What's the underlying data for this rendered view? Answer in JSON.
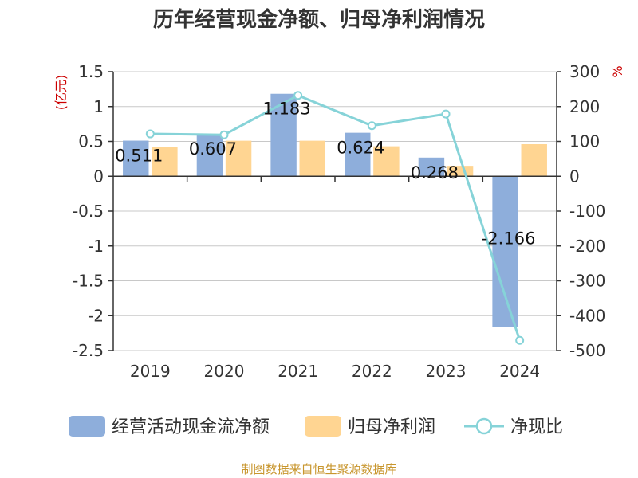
{
  "chart_data": {
    "type": "bar",
    "title": "历年经营现金净额、归母净利润情况",
    "categories": [
      "2019",
      "2020",
      "2021",
      "2022",
      "2023",
      "2024"
    ],
    "series": [
      {
        "name": "经营活动现金流净额",
        "type": "bar",
        "axis": "left",
        "color": "#8eaedb",
        "values": [
          0.511,
          0.607,
          1.183,
          0.624,
          0.268,
          -2.166
        ]
      },
      {
        "name": "归母净利润",
        "type": "bar",
        "axis": "left",
        "color": "#ffd592",
        "values": [
          0.42,
          0.51,
          0.51,
          0.43,
          0.15,
          0.46
        ]
      },
      {
        "name": "净现比",
        "type": "line",
        "axis": "right",
        "color": "#86d3d8",
        "values": [
          121.6,
          119.0,
          232.0,
          145.1,
          178.7,
          -470.9
        ]
      }
    ],
    "data_labels": [
      "0.511",
      "0.607",
      "1.183",
      "0.624",
      "0.268",
      "-2.166"
    ],
    "left_axis": {
      "unit": "(亿元)",
      "ylim": [
        -2.5,
        1.5
      ],
      "ticks": [
        1.5,
        1,
        0.5,
        0,
        -0.5,
        -1,
        -1.5,
        -2,
        -2.5
      ],
      "tick_labels": [
        "1.5",
        "1",
        "0.5",
        "0",
        "-0.5",
        "-1",
        "-1.5",
        "-2",
        "-2.5"
      ]
    },
    "right_axis": {
      "unit": "%",
      "ylim": [
        -500,
        300
      ],
      "ticks": [
        300,
        200,
        100,
        0,
        -100,
        -200,
        -300,
        -400,
        -500
      ],
      "tick_labels": [
        "300",
        "200",
        "100",
        "0",
        "-100",
        "-200",
        "-300",
        "-400",
        "-500"
      ]
    },
    "grid": true,
    "legend_position": "bottom",
    "source": "制图数据来自恒生聚源数据库"
  }
}
